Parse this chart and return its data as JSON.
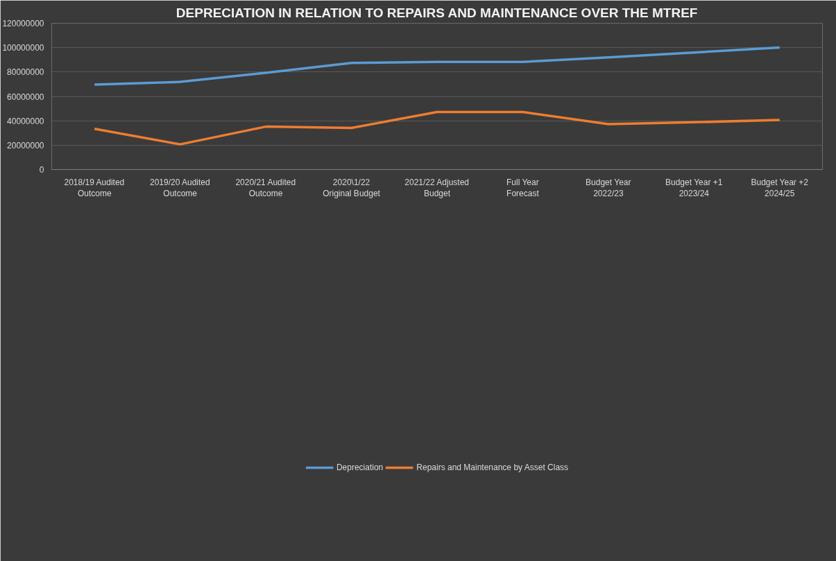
{
  "chart_data": {
    "type": "line",
    "title": "DEPRECIATION IN RELATION TO REPAIRS AND MAINTENANCE OVER THE MTREF",
    "categories": [
      "2018/19 Audited Outcome",
      "2019/20 Audited Outcome",
      "2020/21 Audited Outcome",
      "2020\\1/22 Original Budget",
      "2021/22 Adjusted Budget",
      "Full Year Forecast",
      "Budget Year 2022/23",
      "Budget Year +1 2023/24",
      "Budget Year +2 2024/25"
    ],
    "series": [
      {
        "name": "Depreciation",
        "color": "#5b9bd5",
        "values": [
          69600000,
          71900000,
          79400000,
          87500000,
          88300000,
          88300000,
          92000000,
          96000000,
          100100000
        ]
      },
      {
        "name": "Repairs and Maintenance by Asset Class",
        "color": "#ed7d31",
        "values": [
          33400000,
          20700000,
          35200000,
          34100000,
          47200000,
          47200000,
          37200000,
          38800000,
          40600000
        ]
      }
    ],
    "ylim": [
      0,
      120000000
    ],
    "yticks": [
      0,
      20000000,
      40000000,
      60000000,
      80000000,
      100000000,
      120000000
    ],
    "grid": "y",
    "legend": "bottom",
    "marker": "none",
    "line_style": "solid"
  }
}
